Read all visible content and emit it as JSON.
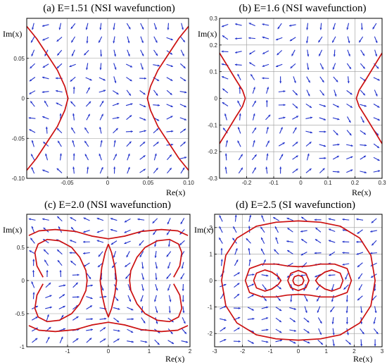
{
  "chart_data": [
    {
      "type": "vector-field",
      "title": "(a) E=1.51 (NSI wavefunction)",
      "xlabel": "Re(x)",
      "ylabel": "Im(x)",
      "xlim": [
        -0.1,
        0.1
      ],
      "ylim": [
        -0.1,
        0.1
      ],
      "xticks": [
        -0.05,
        0,
        0.05,
        0.1
      ],
      "xtick_labels": [
        "-0.05",
        "0",
        "0.05",
        "0.10"
      ],
      "yticks": [
        -0.1,
        -0.05,
        0,
        0.05
      ],
      "ytick_labels": [
        "-0.10",
        "-0.05",
        "0",
        "0.05"
      ],
      "grid": true,
      "curve_color": "#cc1010",
      "arrow_color": "#2233cc",
      "curves": [
        {
          "x": [
            -0.1,
            -0.088,
            -0.075,
            -0.062,
            -0.053,
            -0.049,
            -0.053,
            -0.062,
            -0.075,
            -0.088,
            -0.1
          ],
          "y": [
            0.09,
            0.075,
            0.055,
            0.035,
            0.015,
            0,
            -0.015,
            -0.035,
            -0.055,
            -0.075,
            -0.09
          ]
        },
        {
          "x": [
            0.1,
            0.088,
            0.075,
            0.062,
            0.053,
            0.049,
            0.053,
            0.062,
            0.075,
            0.088,
            0.1
          ],
          "y": [
            0.09,
            0.075,
            0.055,
            0.035,
            0.015,
            0,
            -0.015,
            -0.035,
            -0.055,
            -0.075,
            -0.09
          ]
        }
      ]
    },
    {
      "type": "vector-field",
      "title": "(b) E=1.6 (NSI wavefunction)",
      "xlabel": "Re(x)",
      "ylabel": "Im(x)",
      "xlim": [
        -0.3,
        0.3
      ],
      "ylim": [
        -0.3,
        0.3
      ],
      "xticks": [
        -0.2,
        -0.1,
        0,
        0.1,
        0.2,
        0.3
      ],
      "xtick_labels": [
        "-0.2",
        "-0.1",
        "0",
        "0.1",
        "0.2",
        "0.3"
      ],
      "yticks": [
        -0.3,
        -0.2,
        -0.1,
        0,
        0.1,
        0.2,
        0.3
      ],
      "ytick_labels": [
        "-0.3",
        "-0.2",
        "-0.1",
        "0",
        "0.1",
        "0.2",
        "0.3"
      ],
      "grid": true,
      "curve_color": "#cc1010",
      "arrow_color": "#2233cc",
      "curves": [
        {
          "x": [
            -0.3,
            -0.27,
            -0.24,
            -0.215,
            -0.205,
            -0.215,
            -0.24,
            -0.27,
            -0.3
          ],
          "y": [
            0.17,
            0.12,
            0.07,
            0.03,
            0,
            -0.03,
            -0.07,
            -0.12,
            -0.17
          ]
        },
        {
          "x": [
            0.3,
            0.27,
            0.24,
            0.215,
            0.205,
            0.215,
            0.24,
            0.27,
            0.3
          ],
          "y": [
            0.17,
            0.12,
            0.07,
            0.03,
            0,
            -0.03,
            -0.07,
            -0.12,
            -0.17
          ]
        }
      ]
    },
    {
      "type": "vector-field",
      "title": "(c) E=2.0 (NSI wavefunction)",
      "xlabel": "Re(x)",
      "ylabel": "Im(x)",
      "xlim": [
        -2,
        2
      ],
      "ylim": [
        -1,
        1
      ],
      "xticks": [
        -1,
        0,
        1,
        2
      ],
      "xtick_labels": [
        "-1",
        "0",
        "1",
        "2"
      ],
      "yticks": [
        -1,
        -0.5,
        0,
        0.5
      ],
      "ytick_labels": [
        "-1",
        "-0.5",
        "0",
        "0.5"
      ],
      "grid": true,
      "curve_color": "#cc1010",
      "arrow_color": "#2233cc",
      "curves": [
        {
          "x": [
            -1.95,
            -1.7,
            -1.3,
            -0.8,
            -0.4,
            0,
            0.4,
            0.8,
            1.3,
            1.7,
            1.95
          ],
          "y": [
            0.68,
            0.75,
            0.77,
            0.74,
            0.67,
            0.63,
            0.67,
            0.74,
            0.77,
            0.75,
            0.68
          ]
        },
        {
          "x": [
            -1.95,
            -1.7,
            -1.3,
            -0.8,
            -0.4,
            0,
            0.4,
            0.8,
            1.3,
            1.7,
            1.95
          ],
          "y": [
            -0.68,
            -0.75,
            -0.77,
            -0.74,
            -0.67,
            -0.63,
            -0.67,
            -0.74,
            -0.77,
            -0.75,
            -0.68
          ]
        },
        {
          "x": [
            -1.6,
            -1.75,
            -1.8,
            -1.72,
            -1.5,
            -1.2,
            -0.9,
            -0.7,
            -0.55,
            -0.52,
            -0.55,
            -0.7,
            -0.9,
            -1.2,
            -1.5,
            -1.72,
            -1.8,
            -1.75,
            -1.6
          ],
          "y": [
            0.05,
            0.22,
            0.42,
            0.55,
            0.62,
            0.6,
            0.5,
            0.35,
            0.15,
            0,
            -0.15,
            -0.35,
            -0.5,
            -0.6,
            -0.62,
            -0.55,
            -0.42,
            -0.22,
            -0.05
          ]
        },
        {
          "x": [
            1.6,
            1.75,
            1.8,
            1.72,
            1.5,
            1.2,
            0.9,
            0.7,
            0.55,
            0.52,
            0.55,
            0.7,
            0.9,
            1.2,
            1.5,
            1.72,
            1.8,
            1.75,
            1.6
          ],
          "y": [
            0.05,
            0.22,
            0.42,
            0.55,
            0.62,
            0.6,
            0.5,
            0.35,
            0.15,
            0,
            -0.15,
            -0.35,
            -0.5,
            -0.6,
            -0.62,
            -0.55,
            -0.42,
            -0.22,
            -0.05
          ]
        },
        {
          "x": [
            0,
            0.08,
            0.16,
            0.2,
            0.16,
            0.08,
            0,
            -0.08,
            -0.16,
            -0.2,
            -0.16,
            -0.08,
            0
          ],
          "y": [
            0.55,
            0.42,
            0.2,
            0,
            -0.2,
            -0.42,
            -0.55,
            -0.42,
            -0.2,
            0,
            0.2,
            0.42,
            0.55
          ]
        }
      ]
    },
    {
      "type": "vector-field",
      "title": "(d) E=2.5 (SI wavefunction)",
      "xlabel": "Re(x)",
      "ylabel": "Im(x)",
      "xlim": [
        -3,
        3
      ],
      "ylim": [
        -2.5,
        2.5
      ],
      "xticks": [
        -3,
        -2,
        -1,
        0,
        1,
        2,
        3
      ],
      "xtick_labels": [
        "-3",
        "-2",
        "-1",
        "0",
        "1",
        "2",
        "3"
      ],
      "yticks": [
        -2,
        -1,
        0,
        1,
        2
      ],
      "ytick_labels": [
        "-2",
        "-1",
        "0",
        "1",
        "2"
      ],
      "grid": true,
      "curve_color": "#cc1010",
      "arrow_color": "#2233cc",
      "curves": [
        {
          "x": [
            -2.75,
            -2.6,
            -2.2,
            -1.5,
            -0.8,
            0,
            0.8,
            1.5,
            2.2,
            2.6,
            2.75,
            2.6,
            2.2,
            1.5,
            0.8,
            0,
            -0.8,
            -1.5,
            -2.2,
            -2.6,
            -2.75
          ],
          "y": [
            0,
            0.95,
            1.6,
            2.05,
            2.2,
            2.25,
            2.2,
            2.05,
            1.6,
            0.95,
            0,
            -0.95,
            -1.6,
            -2.05,
            -2.2,
            -2.25,
            -2.2,
            -2.05,
            -1.6,
            -0.95,
            0
          ]
        },
        {
          "x": [
            -1.9,
            -1.75,
            -1.3,
            -0.8,
            -0.4,
            0,
            0.4,
            0.8,
            1.3,
            1.75,
            1.9,
            1.75,
            1.3,
            0.8,
            0.4,
            0,
            -0.4,
            -0.8,
            -1.3,
            -1.75,
            -1.9
          ],
          "y": [
            0,
            0.45,
            0.62,
            0.62,
            0.55,
            0.52,
            0.55,
            0.62,
            0.62,
            0.45,
            0,
            -0.45,
            -0.62,
            -0.62,
            -0.55,
            -0.52,
            -0.55,
            -0.62,
            -0.62,
            -0.45,
            0
          ]
        },
        {
          "x": [
            -1.6,
            -1.5,
            -1.2,
            -0.95,
            -0.72,
            -0.62,
            -0.72,
            -0.95,
            -1.2,
            -1.5,
            -1.6
          ],
          "y": [
            0,
            0.28,
            0.4,
            0.32,
            0.15,
            0,
            -0.15,
            -0.32,
            -0.4,
            -0.28,
            0
          ]
        },
        {
          "x": [
            1.6,
            1.5,
            1.2,
            0.95,
            0.72,
            0.62,
            0.72,
            0.95,
            1.2,
            1.5,
            1.6
          ],
          "y": [
            0,
            0.28,
            0.4,
            0.32,
            0.15,
            0,
            -0.15,
            -0.32,
            -0.4,
            -0.28,
            0
          ]
        },
        {
          "x": [
            -0.38,
            -0.27,
            0,
            0.27,
            0.38,
            0.27,
            0,
            -0.27,
            -0.38
          ],
          "y": [
            0,
            0.27,
            0.38,
            0.27,
            0,
            -0.27,
            -0.38,
            -0.27,
            0
          ]
        },
        {
          "x": [
            -0.2,
            -0.14,
            0,
            0.14,
            0.2,
            0.14,
            0,
            -0.14,
            -0.2
          ],
          "y": [
            0,
            0.14,
            0.2,
            0.14,
            0,
            -0.14,
            -0.2,
            -0.14,
            0
          ]
        }
      ]
    }
  ]
}
